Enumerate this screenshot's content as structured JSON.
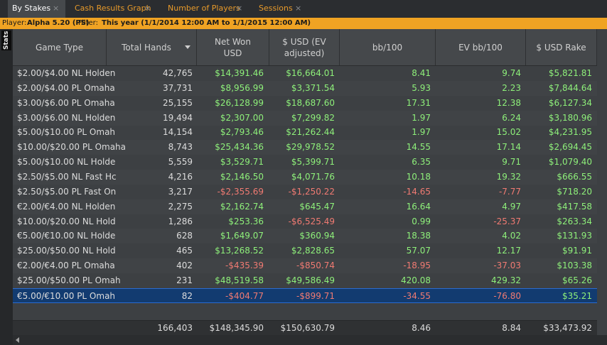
{
  "tabs": [
    {
      "label": "By Stakes",
      "active": true
    },
    {
      "label": "Cash Results Graph",
      "active": false
    },
    {
      "label": "Number of Players",
      "active": false
    },
    {
      "label": "Sessions",
      "active": false
    }
  ],
  "close_glyph": "×",
  "filter": {
    "player_label": "Player:",
    "player_value": "Alpha 5.20 (PS)",
    "filter_label": "Filter:",
    "filter_value": "This year (1/1/2014 12:00 AM to 1/1/2015 12:00 AM)"
  },
  "side_tab": "Stats",
  "columns": [
    {
      "label": "Game Type"
    },
    {
      "label": "Total Hands",
      "sorted": "desc"
    },
    {
      "label": "Net Won USD"
    },
    {
      "label": "$ USD (EV adjusted)"
    },
    {
      "label": "bb/100"
    },
    {
      "label": "EV bb/100"
    },
    {
      "label": "$ USD Rake"
    }
  ],
  "rows": [
    {
      "game": "$2.00/$4.00 NL Holden",
      "hands": "42,765",
      "net": "$14,391.46",
      "ev": "$16,664.01",
      "bb": "8.41",
      "evbb": "9.74",
      "rake": "$5,821.81"
    },
    {
      "game": "$2.00/$4.00 PL Omaha",
      "hands": "37,731",
      "net": "$8,956.99",
      "ev": "$3,371.54",
      "bb": "5.93",
      "evbb": "2.23",
      "rake": "$7,844.64"
    },
    {
      "game": "$3.00/$6.00 PL Omaha",
      "hands": "25,155",
      "net": "$26,128.99",
      "ev": "$18,687.60",
      "bb": "17.31",
      "evbb": "12.38",
      "rake": "$6,127.34"
    },
    {
      "game": "$3.00/$6.00 NL Holden",
      "hands": "19,494",
      "net": "$2,307.00",
      "ev": "$7,299.82",
      "bb": "1.97",
      "evbb": "6.24",
      "rake": "$3,180.96"
    },
    {
      "game": "$5.00/$10.00 PL Omah",
      "hands": "14,154",
      "net": "$2,793.46",
      "ev": "$21,262.44",
      "bb": "1.97",
      "evbb": "15.02",
      "rake": "$4,231.95"
    },
    {
      "game": "$10.00/$20.00 PL Omaha",
      "hands": "8,743",
      "net": "$25,434.36",
      "ev": "$29,978.52",
      "bb": "14.55",
      "evbb": "17.14",
      "rake": "$2,694.45"
    },
    {
      "game": "$5.00/$10.00 NL Holde",
      "hands": "5,559",
      "net": "$3,529.71",
      "ev": "$5,399.71",
      "bb": "6.35",
      "evbb": "9.71",
      "rake": "$1,079.40"
    },
    {
      "game": "$2.50/$5.00 NL Fast Hc",
      "hands": "4,216",
      "net": "$2,146.50",
      "ev": "$4,071.76",
      "bb": "10.18",
      "evbb": "19.32",
      "rake": "$666.55"
    },
    {
      "game": "$2.50/$5.00 PL Fast On",
      "hands": "3,217",
      "net": "-$2,355.69",
      "ev": "-$1,250.22",
      "bb": "-14.65",
      "evbb": "-7.77",
      "rake": "$718.20"
    },
    {
      "game": "€2.00/€4.00 NL Holden",
      "hands": "2,275",
      "net": "$2,162.74",
      "ev": "$645.47",
      "bb": "16.64",
      "evbb": "4.97",
      "rake": "$417.58"
    },
    {
      "game": "$10.00/$20.00 NL Hold",
      "hands": "1,286",
      "net": "$253.36",
      "ev": "-$6,525.49",
      "bb": "0.99",
      "evbb": "-25.37",
      "rake": "$263.34"
    },
    {
      "game": "€5.00/€10.00 NL Holde",
      "hands": "628",
      "net": "$1,649.07",
      "ev": "$360.94",
      "bb": "18.38",
      "evbb": "4.02",
      "rake": "$131.93"
    },
    {
      "game": "$25.00/$50.00 NL Hold",
      "hands": "465",
      "net": "$13,268.52",
      "ev": "$2,828.65",
      "bb": "57.07",
      "evbb": "12.17",
      "rake": "$91.91"
    },
    {
      "game": "€2.00/€4.00 PL Omaha",
      "hands": "402",
      "net": "-$435.39",
      "ev": "-$850.74",
      "bb": "-18.95",
      "evbb": "-37.03",
      "rake": "$103.38"
    },
    {
      "game": "$25.00/$50.00 PL Omah",
      "hands": "231",
      "net": "$48,519.58",
      "ev": "$49,586.49",
      "bb": "420.08",
      "evbb": "429.32",
      "rake": "$65.26"
    },
    {
      "game": "€5.00/€10.00 PL Omah",
      "hands": "82",
      "net": "-$404.77",
      "ev": "-$899.71",
      "bb": "-34.55",
      "evbb": "-76.80",
      "rake": "$35.21",
      "selected": true
    }
  ],
  "totals": {
    "hands": "166,403",
    "net": "$148,345.90",
    "ev": "$150,630.79",
    "bb": "8.46",
    "evbb": "8.84",
    "rake": "$33,473.92"
  },
  "colors": {
    "positive": "#8ef07a",
    "negative": "#f07a72",
    "accent": "#f0a323",
    "selected_row": "#123b70"
  }
}
